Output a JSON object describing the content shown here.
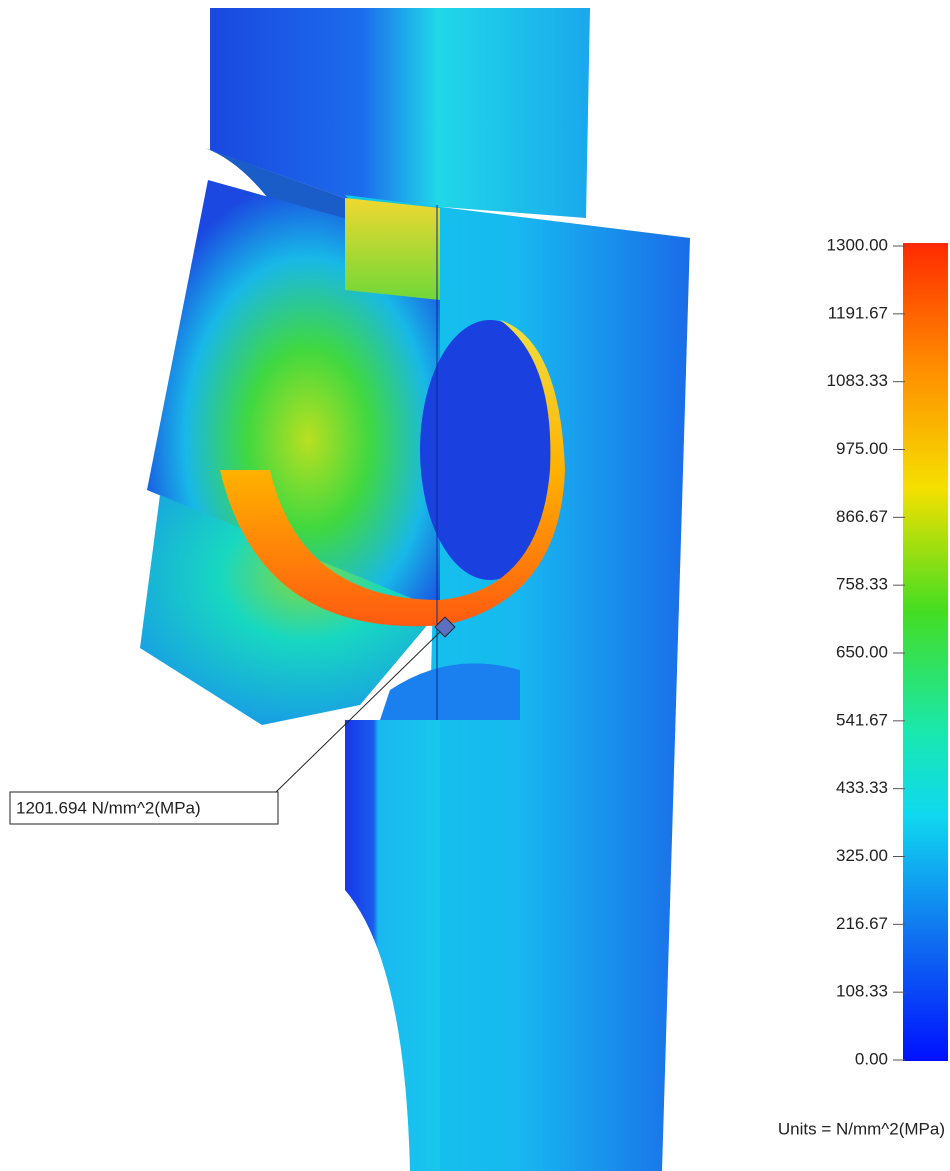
{
  "legend": {
    "ticks": [
      {
        "value": 1300,
        "label": "1300.00"
      },
      {
        "value": 1191.67,
        "label": "1191.67"
      },
      {
        "value": 1083.33,
        "label": "1083.33"
      },
      {
        "value": 975,
        "label": "975.00"
      },
      {
        "value": 866.67,
        "label": "866.67"
      },
      {
        "value": 758.33,
        "label": "758.33"
      },
      {
        "value": 650,
        "label": "650.00"
      },
      {
        "value": 541.67,
        "label": "541.67"
      },
      {
        "value": 433.33,
        "label": "433.33"
      },
      {
        "value": 325,
        "label": "325.00"
      },
      {
        "value": 216.67,
        "label": "216.67"
      },
      {
        "value": 108.33,
        "label": "108.33"
      },
      {
        "value": 0,
        "label": "0.00"
      }
    ],
    "units": "Units = N/mm^2(MPa)"
  },
  "probe": {
    "label": "1201.694 N/mm^2(MPa)"
  }
}
